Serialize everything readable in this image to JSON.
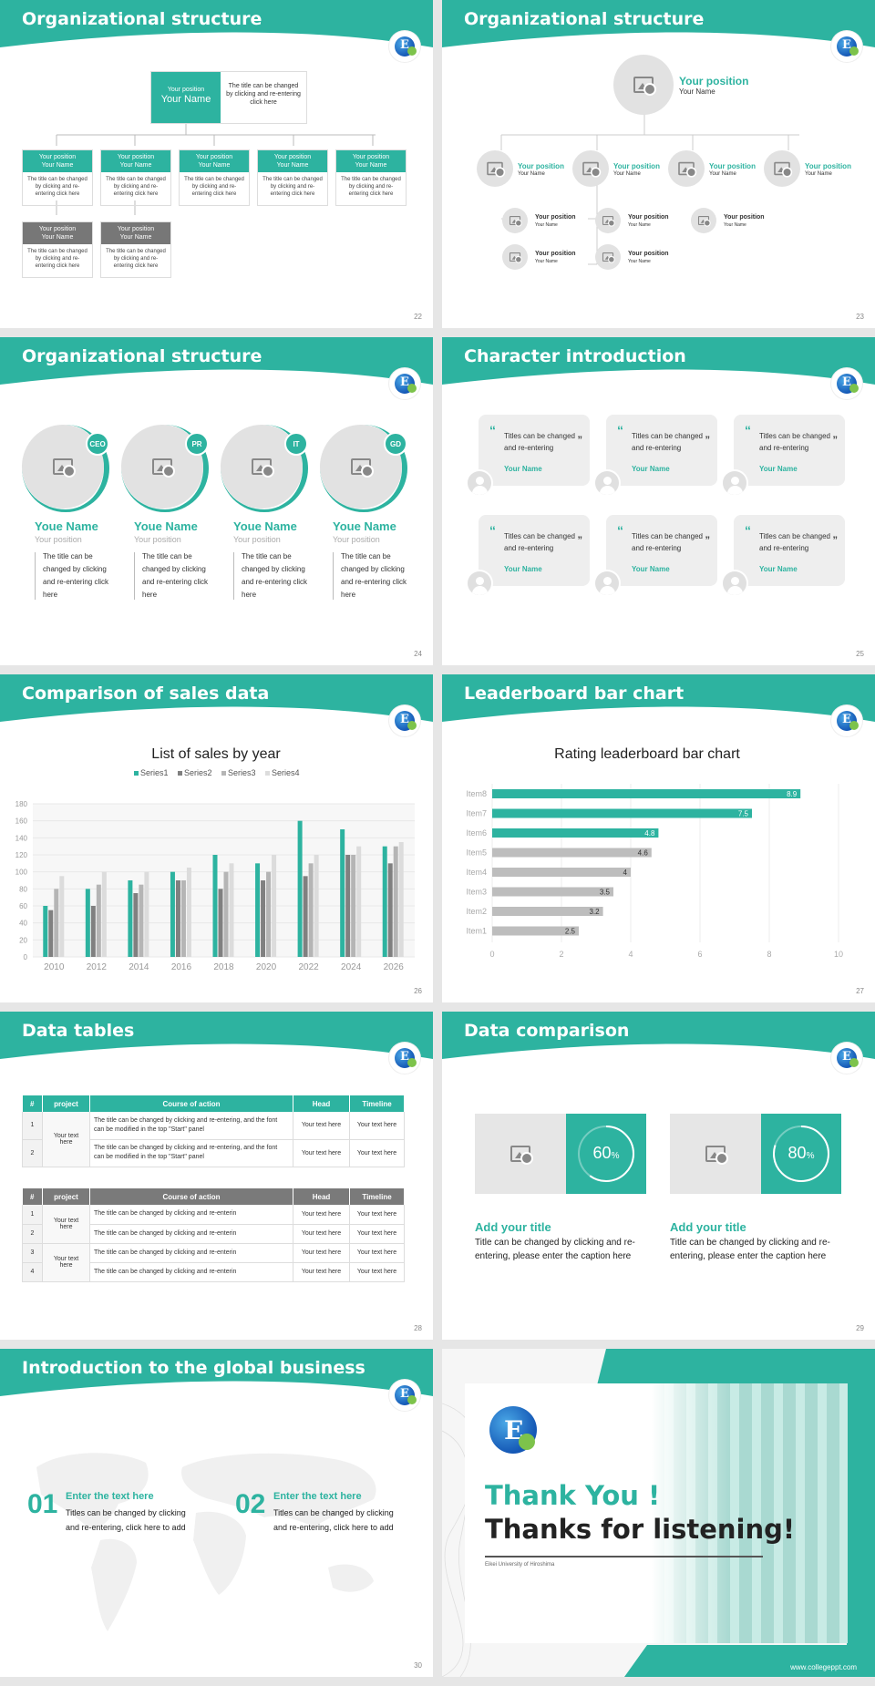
{
  "colors": {
    "accent": "#2db3a0",
    "gray": "#777777",
    "light": "#c8c8c8"
  },
  "slides": {
    "s22": {
      "title": "Organizational structure",
      "page": "22",
      "top": {
        "position": "Your position",
        "name": "Your Name",
        "desc": "The title can be changed by clicking and re-entering click here"
      },
      "boxes": [
        {
          "position": "Your position",
          "name": "Your Name",
          "desc": "The title can be changed by clicking and re-entering click here"
        },
        {
          "position": "Your position",
          "name": "Your Name",
          "desc": "The title can be changed by clicking and re-entering click here"
        },
        {
          "position": "Your position",
          "name": "Your Name",
          "desc": "The title can be changed by clicking and re-entering click here"
        },
        {
          "position": "Your position",
          "name": "Your Name",
          "desc": "The title can be changed by clicking and re-entering click here"
        },
        {
          "position": "Your position",
          "name": "Your Name",
          "desc": "The title can be changed by clicking and re-entering click here"
        },
        {
          "position": "Your position",
          "name": "Your Name",
          "desc": "The title can be changed by clicking and re-entering click here"
        },
        {
          "position": "Your position",
          "name": "Your Name",
          "desc": "The title can be changed by clicking and re-entering click here"
        }
      ]
    },
    "s23": {
      "title": "Organizational structure",
      "page": "23",
      "position": "Your position",
      "name": "Your Name"
    },
    "s24": {
      "title": "Organizational structure",
      "page": "24",
      "items": [
        {
          "tag": "CEO",
          "name": "Youe Name",
          "position": "Your position",
          "desc": "The title can be changed by clicking and re-entering click here"
        },
        {
          "tag": "PR",
          "name": "Youe Name",
          "position": "Your position",
          "desc": "The title can be changed by clicking and re-entering click here"
        },
        {
          "tag": "IT",
          "name": "Youe Name",
          "position": "Your position",
          "desc": "The title can be changed by clicking and re-entering click here"
        },
        {
          "tag": "GD",
          "name": "Youe Name",
          "position": "Your position",
          "desc": "The title can be changed by clicking and re-entering click here"
        }
      ]
    },
    "s25": {
      "title": "Character introduction",
      "page": "25",
      "quote": "Titles can be changed and re-entering",
      "name": "Your Name"
    },
    "s26": {
      "title": "Comparison of sales data",
      "page": "26"
    },
    "s27": {
      "title": "Leaderboard bar chart",
      "page": "27"
    },
    "s28": {
      "title": "Data tables",
      "page": "28",
      "headers": [
        "#",
        "project",
        "Course of action",
        "Head",
        "Timeline"
      ],
      "t1": {
        "project": "Your text here",
        "rows": [
          {
            "n": "1",
            "action": "The title can be changed by clicking and re-entering, and the font can be modified in the top \"Start\" panel",
            "head": "Your text here",
            "time": "Your text here"
          },
          {
            "n": "2",
            "action": "The title can be changed by clicking and re-entering, and the font can be modified in the top \"Start\" panel",
            "head": "Your text here",
            "time": "Your text here"
          }
        ]
      },
      "t2": {
        "rows": [
          {
            "n": "1",
            "project": "Your text here",
            "action": "The title can be changed by clicking and re-enterin",
            "head": "Your text here",
            "time": "Your text here"
          },
          {
            "n": "2",
            "project": "",
            "action": "The title can be changed by clicking and re-enterin",
            "head": "Your text here",
            "time": "Your text here"
          },
          {
            "n": "3",
            "project": "Your text here",
            "action": "The title can be changed by clicking and re-enterin",
            "head": "Your text here",
            "time": "Your text here"
          },
          {
            "n": "4",
            "project": "",
            "action": "The title can be changed by clicking and re-enterin",
            "head": "Your text here",
            "time": "Your text here"
          }
        ]
      }
    },
    "s29": {
      "title": "Data comparison",
      "page": "29",
      "cards": [
        {
          "percent": 60,
          "label": "60",
          "unit": "%",
          "title": "Add your title",
          "desc": "Title can be changed by clicking and re-entering, please enter the caption here"
        },
        {
          "percent": 80,
          "label": "80",
          "unit": "%",
          "title": "Add your title",
          "desc": "Title can be changed by clicking and re-entering, please enter the caption here"
        }
      ]
    },
    "s30": {
      "title": "Introduction to the global business",
      "page": "30",
      "items": [
        {
          "num": "01",
          "head": "Enter the text here",
          "desc": "Titles can be changed by clicking and re-entering, click here to add"
        },
        {
          "num": "02",
          "head": "Enter the text here",
          "desc": "Titles can be changed by clicking and re-entering, click here to add"
        }
      ]
    },
    "s31": {
      "line1": "Thank You !",
      "line2": "Thanks for listening!",
      "sub": "Eikei University of Hiroshima",
      "url": "www.collegeppt.com"
    }
  },
  "chart_data": [
    {
      "type": "bar",
      "title": "List of sales by year",
      "categories": [
        "2010",
        "2012",
        "2014",
        "2016",
        "2018",
        "2020",
        "2022",
        "2024",
        "2026"
      ],
      "ylim": [
        0,
        180
      ],
      "yticks": [
        0,
        20,
        40,
        60,
        80,
        100,
        120,
        140,
        160,
        180
      ],
      "series": [
        {
          "name": "Series1",
          "color": "#2db3a0",
          "values": [
            60,
            80,
            90,
            100,
            120,
            110,
            160,
            150,
            130
          ]
        },
        {
          "name": "Series2",
          "color": "#808080",
          "values": [
            55,
            60,
            75,
            90,
            80,
            90,
            95,
            120,
            110
          ]
        },
        {
          "name": "Series3",
          "color": "#b5b5b5",
          "values": [
            80,
            85,
            85,
            90,
            100,
            100,
            110,
            120,
            130
          ]
        },
        {
          "name": "Series4",
          "color": "#dcdcdc",
          "values": [
            95,
            100,
            100,
            105,
            110,
            120,
            120,
            130,
            135
          ]
        }
      ]
    },
    {
      "type": "bar",
      "orientation": "horizontal",
      "title": "Rating leaderboard bar chart",
      "categories": [
        "Item8",
        "Item7",
        "Item6",
        "Item5",
        "Item4",
        "Item3",
        "Item2",
        "Item1"
      ],
      "values": [
        8.9,
        7.5,
        4.8,
        4.6,
        4,
        3.5,
        3.2,
        2.5
      ],
      "highlight": 3,
      "xlim": [
        0,
        10
      ],
      "xticks": [
        0,
        2,
        4,
        6,
        8,
        10
      ]
    }
  ]
}
